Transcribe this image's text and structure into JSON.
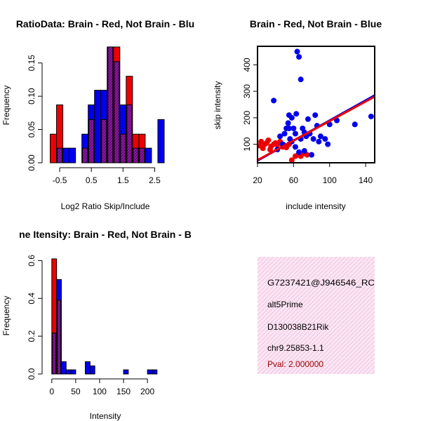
{
  "colors": {
    "red": "#ee0000",
    "blue": "#0000ee",
    "overlap": "#8b1aa0",
    "info_bg": "#f8d9ee",
    "pval": "#9b0000"
  },
  "chart_data": [
    {
      "type": "bar",
      "title": "RatioData: Brain - Red, Not Brain - Blu",
      "xlabel": "Log2 Ratio Skip/Include",
      "ylabel": "Frequency",
      "xlim": [
        -0.9,
        2.8
      ],
      "ylim": [
        0,
        0.175
      ],
      "xticks": [
        "-0.5",
        "0.5",
        "1.5",
        "2.5"
      ],
      "xtick_values": [
        -0.5,
        0.5,
        1.5,
        2.5
      ],
      "yticks": [
        "0.00",
        "0.05",
        "0.10",
        "0.15"
      ],
      "ytick_values": [
        0,
        0.05,
        0.1,
        0.15
      ],
      "bin_width": 0.2,
      "bin_starts": [
        -0.8,
        -0.6,
        -0.4,
        -0.2,
        0.0,
        0.2,
        0.4,
        0.6,
        0.8,
        1.0,
        1.2,
        1.4,
        1.6,
        1.8,
        2.0,
        2.2,
        2.4,
        2.6
      ],
      "series": [
        {
          "name": "Brain",
          "color": "red",
          "values": [
            0.043,
            0.087,
            0,
            0,
            0,
            0.022,
            0.065,
            0,
            0.065,
            0.174,
            0.174,
            0.043,
            0.13,
            0.043,
            0.043,
            0,
            0,
            0
          ]
        },
        {
          "name": "Not Brain",
          "color": "blue",
          "values": [
            0,
            0.022,
            0.022,
            0.022,
            0,
            0.043,
            0.087,
            0.109,
            0.109,
            0.174,
            0.152,
            0.087,
            0.087,
            0.022,
            0.022,
            0.022,
            0,
            0.065
          ]
        }
      ]
    },
    {
      "type": "scatter",
      "title": "Brain - Red, Not Brain - Blue",
      "xlabel": "include intensity",
      "ylabel": "skip intensity",
      "xlim": [
        20,
        150
      ],
      "ylim": [
        30,
        470
      ],
      "xticks": [
        "20",
        "60",
        "100",
        "140"
      ],
      "xtick_values": [
        20,
        60,
        100,
        140
      ],
      "yticks": [
        "100",
        "200",
        "300",
        "400"
      ],
      "ytick_values": [
        100,
        200,
        300,
        400
      ],
      "series": [
        {
          "name": "Brain",
          "color": "red",
          "points": [
            [
              22,
              95
            ],
            [
              24,
              110
            ],
            [
              26,
              85
            ],
            [
              28,
              100
            ],
            [
              30,
              105
            ],
            [
              32,
              115
            ],
            [
              34,
              80
            ],
            [
              35,
              92
            ],
            [
              38,
              100
            ],
            [
              42,
              98
            ],
            [
              45,
              110
            ],
            [
              48,
              90
            ],
            [
              50,
              95
            ],
            [
              52,
              88
            ],
            [
              55,
              100
            ],
            [
              58,
              40
            ],
            [
              62,
              55
            ],
            [
              65,
              60
            ],
            [
              68,
              55
            ],
            [
              72,
              65
            ],
            [
              75,
              60
            ],
            [
              40,
              105
            ]
          ],
          "fit": [
            [
              20,
              40
            ],
            [
              150,
              280
            ]
          ]
        },
        {
          "name": "Not Brain",
          "color": "blue",
          "points": [
            [
              38,
              265
            ],
            [
              42,
              80
            ],
            [
              45,
              130
            ],
            [
              48,
              100
            ],
            [
              50,
              140
            ],
            [
              52,
              160
            ],
            [
              54,
              180
            ],
            [
              55,
              210
            ],
            [
              56,
              120
            ],
            [
              58,
              200
            ],
            [
              60,
              160
            ],
            [
              62,
              140
            ],
            [
              63,
              215
            ],
            [
              64,
              450
            ],
            [
              66,
              430
            ],
            [
              68,
              345
            ],
            [
              68,
              120
            ],
            [
              70,
              160
            ],
            [
              72,
              145
            ],
            [
              74,
              130
            ],
            [
              76,
              195
            ],
            [
              78,
              140
            ],
            [
              80,
              60
            ],
            [
              82,
              120
            ],
            [
              84,
              210
            ],
            [
              86,
              170
            ],
            [
              88,
              110
            ],
            [
              90,
              130
            ],
            [
              95,
              120
            ],
            [
              98,
              100
            ],
            [
              100,
              175
            ],
            [
              108,
              190
            ],
            [
              128,
              175
            ],
            [
              146,
              205
            ],
            [
              58,
              110
            ],
            [
              62,
              90
            ],
            [
              66,
              70
            ],
            [
              72,
              75
            ],
            [
              55,
              160
            ]
          ],
          "fit": [
            [
              20,
              38
            ],
            [
              150,
              285
            ]
          ]
        }
      ]
    },
    {
      "type": "bar",
      "title": "ne Itensity: Brain - Red, Not Brain - B",
      "xlabel": "Intensity",
      "ylabel": "Frequency",
      "xlim": [
        -10,
        235
      ],
      "ylim": [
        0,
        0.62
      ],
      "xticks": [
        "0",
        "50",
        "100",
        "150",
        "200"
      ],
      "xtick_values": [
        0,
        50,
        100,
        150,
        200
      ],
      "yticks": [
        "0.0",
        "0.2",
        "0.4",
        "0.6"
      ],
      "ytick_values": [
        0,
        0.2,
        0.4,
        0.6
      ],
      "bin_width": 10,
      "bin_starts": [
        0,
        10,
        20,
        30,
        40,
        50,
        60,
        70,
        80,
        90,
        100,
        110,
        120,
        130,
        140,
        150,
        160,
        170,
        180,
        190,
        200,
        210,
        220
      ],
      "series": [
        {
          "name": "Brain",
          "color": "red",
          "values": [
            0.609,
            0.391,
            0,
            0,
            0,
            0,
            0,
            0,
            0,
            0,
            0,
            0,
            0,
            0,
            0,
            0,
            0,
            0,
            0,
            0,
            0,
            0,
            0
          ]
        },
        {
          "name": "Not Brain",
          "color": "blue",
          "values": [
            0.217,
            0.5,
            0.065,
            0.022,
            0.022,
            0,
            0,
            0.065,
            0.043,
            0,
            0,
            0,
            0,
            0,
            0,
            0.022,
            0,
            0,
            0,
            0,
            0.022,
            0.022,
            0
          ]
        }
      ]
    }
  ],
  "info": {
    "probe_id": "G7237421@J946546_RC",
    "event_type": "alt5Prime",
    "gene": "D130038B21Rik",
    "location": "chr9.25853-1.1",
    "pval": "Pval: 2.000000"
  }
}
